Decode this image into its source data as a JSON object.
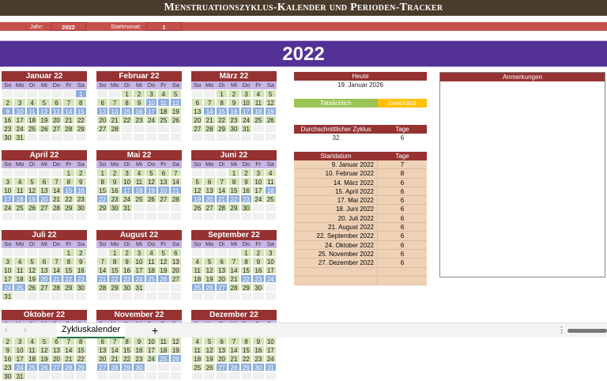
{
  "title": "Menstruationszyklus-Kalender und Perioden-Tracker",
  "params": {
    "year_label": "Jahr:",
    "year": "2022",
    "start_label": "Startmonat:",
    "start_month": "1"
  },
  "year_banner": "2022",
  "weekdays": [
    "So",
    "Mo",
    "Di",
    "Mi",
    "Do",
    "Fr",
    "Sa"
  ],
  "months": [
    "Januar 22",
    "Februar 22",
    "März 22",
    "April 22",
    "Mai 22",
    "Juni 22",
    "Juli 22",
    "August 22",
    "September 22",
    "Oktober 22",
    "November 22",
    "Dezember 22"
  ],
  "colors": {
    "period": "#8eaedc",
    "day": "#d4e4b8",
    "header": "#963232",
    "weekday": "#c8b4e6",
    "actual": "#9bc456",
    "estimated": "#ffc000"
  },
  "today": {
    "label": "Heute",
    "value": "19. Januar 2026"
  },
  "legend": {
    "actual": "Tatsächlich",
    "estimated": "Geschätzt"
  },
  "average": {
    "cycle_label": "Durchschnittlicher Zyklus",
    "days_label": "Tage",
    "cycle": "32",
    "days": "6"
  },
  "table": {
    "col_start": "Startdatum",
    "col_days": "Tage",
    "rows": [
      {
        "start": "9. Januar 2022",
        "days": "7",
        "m": 1,
        "d": 9
      },
      {
        "start": "10. Februar 2022",
        "days": "8",
        "m": 2,
        "d": 10
      },
      {
        "start": "14. März 2022",
        "days": "6",
        "m": 3,
        "d": 14
      },
      {
        "start": "15. April 2022",
        "days": "6",
        "m": 4,
        "d": 15
      },
      {
        "start": "17. Mai 2022",
        "days": "6",
        "m": 5,
        "d": 17
      },
      {
        "start": "18. Juni 2022",
        "days": "6",
        "m": 6,
        "d": 18
      },
      {
        "start": "20. Juli 2022",
        "days": "6",
        "m": 7,
        "d": 20
      },
      {
        "start": "21. August 2022",
        "days": "6",
        "m": 8,
        "d": 21
      },
      {
        "start": "22. September 2022",
        "days": "6",
        "m": 9,
        "d": 22
      },
      {
        "start": "24. Oktober 2022",
        "days": "6",
        "m": 10,
        "d": 24
      },
      {
        "start": "25. November 2022",
        "days": "6",
        "m": 11,
        "d": 25
      },
      {
        "start": "27. Dezember 2022",
        "days": "6",
        "m": 12,
        "d": 27
      },
      {
        "start": "",
        "days": ""
      },
      {
        "start": "",
        "days": ""
      }
    ]
  },
  "notes": {
    "label": "Anmerkungen"
  },
  "sheet_tabs": [
    {
      "label": "Zykluskalender",
      "active": true
    }
  ]
}
